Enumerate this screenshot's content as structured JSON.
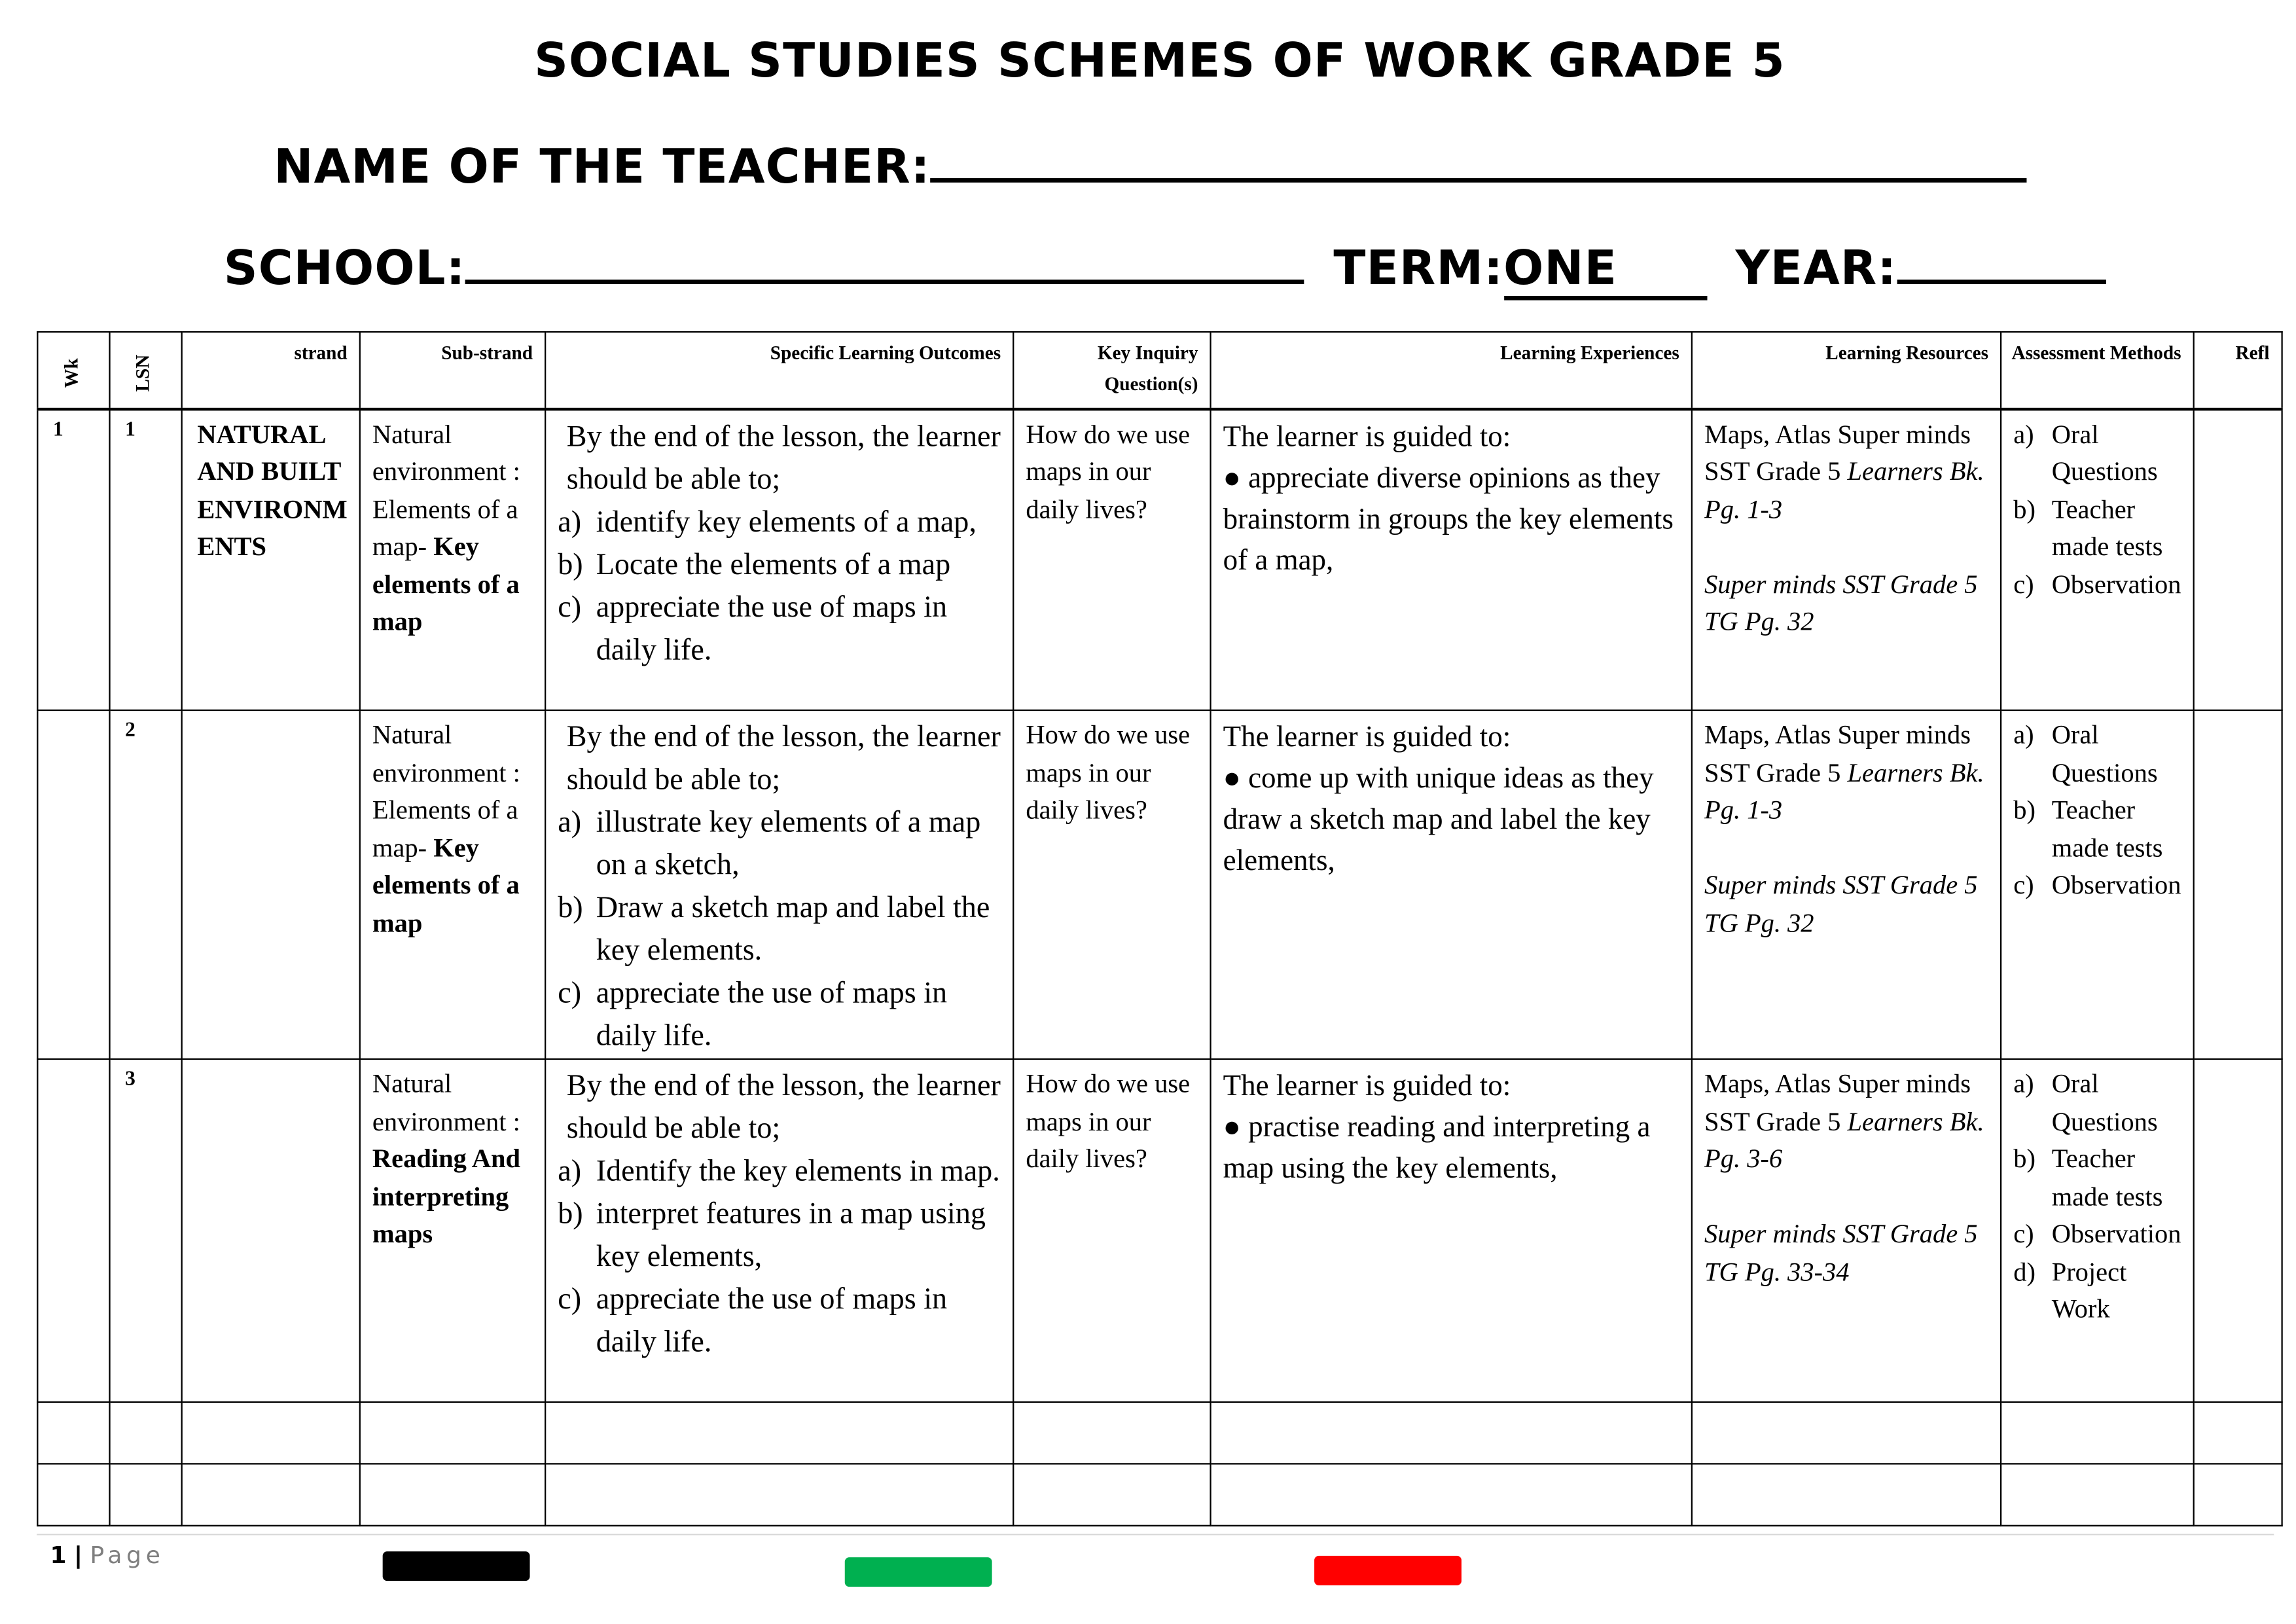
{
  "header": {
    "title": "SOCIAL STUDIES SCHEMES OF WORK GRADE 5",
    "teacher_label": "NAME OF THE TEACHER:",
    "school_label": "SCHOOL:",
    "term_label": "TERM:",
    "term_value": "ONE",
    "year_label": "YEAR:"
  },
  "table": {
    "columns": [
      "Wk",
      "LSN",
      "strand",
      "Sub-strand",
      "Specific Learning Outcomes",
      "Key Inquiry Question(s)",
      "Learning Experiences",
      "Learning Resources",
      "Assessment Methods",
      "Refl"
    ],
    "rows": [
      {
        "wk": "1",
        "lsn": "1",
        "strand": "NATURAL AND BUILT ENVIRONM ENTS",
        "sub_plain": "Natural environment : Elements of a map- ",
        "sub_bold": "Key elements of a map",
        "outcome_intro": "By the end of the lesson, the learner should be able to;",
        "outcomes": [
          {
            "m": "a)",
            "t": "identify key elements of a map,"
          },
          {
            "m": "b)",
            "t": "Locate the elements of a map"
          },
          {
            "m": "c)",
            "t": "appreciate the use of maps in daily life."
          }
        ],
        "question": "How do we use maps in our daily lives?",
        "exp_intro": "The learner is guided to:",
        "exp": "● appreciate diverse opinions as they brainstorm in groups the key elements of a map,",
        "res_plain": "Maps, Atlas Super minds SST Grade 5 ",
        "res_it1": "Learners Bk. Pg. 1-3",
        "res_it2": "Super minds SST Grade 5 TG Pg. 32",
        "assess": [
          {
            "m": "a)",
            "t": "Oral Questions"
          },
          {
            "m": "b)",
            "t": "Teacher made tests"
          },
          {
            "m": "c)",
            "t": "Observation"
          }
        ]
      },
      {
        "wk": "",
        "lsn": "2",
        "strand": "",
        "sub_plain": "Natural environment : Elements of a map- ",
        "sub_bold": "Key elements of a map",
        "outcome_intro": "By the end of the lesson, the learner should be able to;",
        "outcomes": [
          {
            "m": "a)",
            "t": "illustrate key elements of a map on a sketch,"
          },
          {
            "m": "b)",
            "t": "Draw a sketch map and label the key elements."
          },
          {
            "m": "c)",
            "t": "appreciate the use of maps in daily life."
          }
        ],
        "question": "How do we use maps in our daily lives?",
        "exp_intro": "The learner is guided to:",
        "exp": "● come up with unique ideas as they draw a sketch map and label the key elements,",
        "res_plain": "Maps, Atlas Super minds SST Grade 5 ",
        "res_it1": "Learners Bk. Pg. 1-3",
        "res_it2": "Super minds SST Grade 5 TG Pg. 32",
        "assess": [
          {
            "m": "a)",
            "t": "Oral Questions"
          },
          {
            "m": "b)",
            "t": "Teacher made tests"
          },
          {
            "m": "c)",
            "t": "Observation"
          }
        ]
      },
      {
        "wk": "",
        "lsn": "3",
        "strand": "",
        "sub_plain": "Natural environment : ",
        "sub_bold": "Reading And interpreting maps",
        "outcome_intro": "By the end of the lesson, the learner should be able to;",
        "outcomes": [
          {
            "m": "a)",
            "t": "Identify the key elements in map."
          },
          {
            "m": "b)",
            "t": "interpret features in a map using key elements,"
          },
          {
            "m": "c)",
            "t": "appreciate the use of maps in daily life."
          }
        ],
        "question": "How do we use maps in our daily lives?",
        "exp_intro": "The learner is guided to:",
        "exp": "● practise reading and interpreting a map using the key elements,",
        "res_plain": "Maps, Atlas Super minds SST Grade 5 ",
        "res_it1": "Learners Bk. Pg. 3-6",
        "res_it2": "Super minds SST Grade 5 TG Pg. 33-34",
        "assess": [
          {
            "m": "a)",
            "t": "Oral Questions"
          },
          {
            "m": "b)",
            "t": "Teacher made tests"
          },
          {
            "m": "c)",
            "t": "Observation"
          },
          {
            "m": "d)",
            "t": "Project Work"
          }
        ]
      }
    ]
  },
  "footer": {
    "page_number": "1",
    "page_label": "Page",
    "swatch_colors": [
      "#000000",
      "#00b050",
      "#ff0000"
    ]
  }
}
